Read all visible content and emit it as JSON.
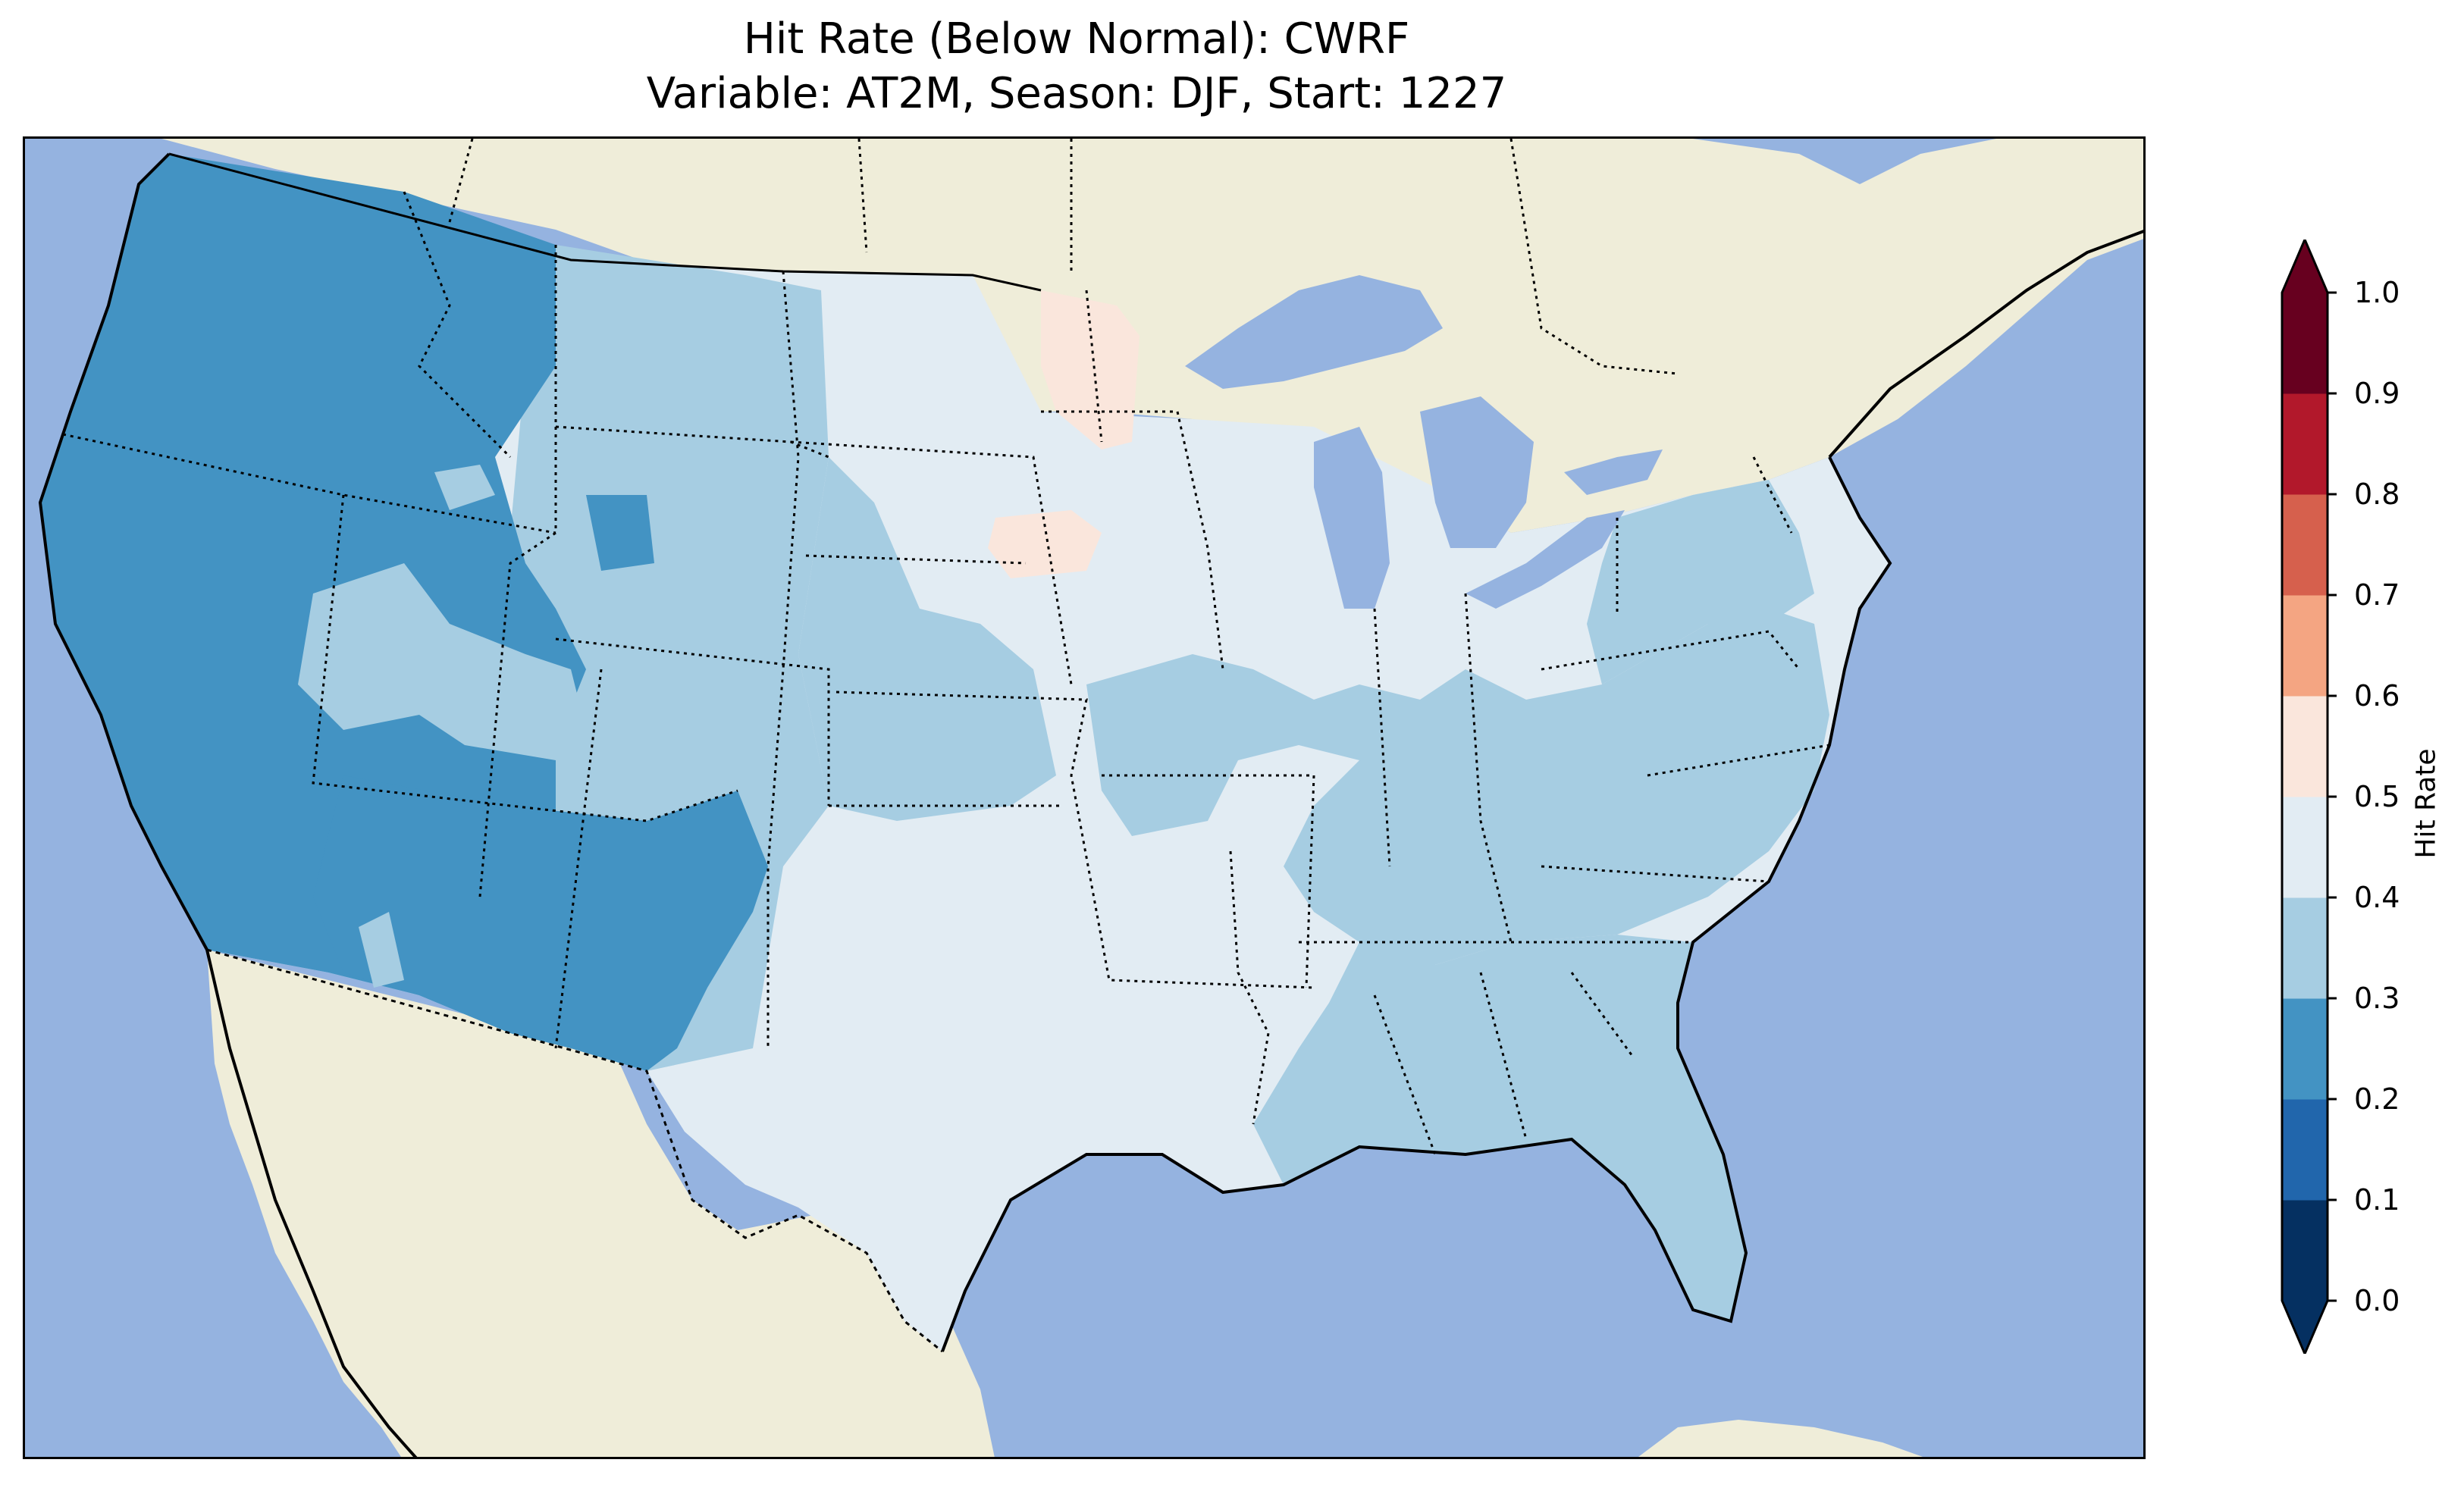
{
  "title": {
    "line1": "Hit Rate (Below Normal): CWRF",
    "line2": "Variable: AT2M, Season: DJF, Start: 1227"
  },
  "colors": {
    "ocean": "#95b3e0",
    "land": "#efedd9",
    "lakes": "#95b3e0"
  },
  "colorbar": {
    "label": "Hit Rate",
    "ticks": [
      "0.0",
      "0.1",
      "0.2",
      "0.3",
      "0.4",
      "0.5",
      "0.6",
      "0.7",
      "0.8",
      "0.9",
      "1.0"
    ],
    "bins": [
      {
        "range": [
          0.0,
          0.1
        ],
        "color": "#053061"
      },
      {
        "range": [
          0.1,
          0.2
        ],
        "color": "#2166ac"
      },
      {
        "range": [
          0.2,
          0.3
        ],
        "color": "#4393c3"
      },
      {
        "range": [
          0.3,
          0.4
        ],
        "color": "#a6cde2"
      },
      {
        "range": [
          0.4,
          0.5
        ],
        "color": "#e2ecf3"
      },
      {
        "range": [
          0.5,
          0.6
        ],
        "color": "#fae6dc"
      },
      {
        "range": [
          0.6,
          0.7
        ],
        "color": "#f4a582"
      },
      {
        "range": [
          0.7,
          0.8
        ],
        "color": "#d6604d"
      },
      {
        "range": [
          0.8,
          0.9
        ],
        "color": "#b2182b"
      },
      {
        "range": [
          0.9,
          1.0
        ],
        "color": "#67001f"
      }
    ],
    "extend": "both"
  },
  "regions": [
    {
      "name": "Pacific Northwest and California",
      "hit_rate_bin": "0.2-0.3"
    },
    {
      "name": "Great Basin / Nevada-Utah",
      "hit_rate_bin": "0.2-0.3"
    },
    {
      "name": "Arizona / New Mexico",
      "hit_rate_bin": "0.2-0.3"
    },
    {
      "name": "Montana / Wyoming / Colorado",
      "hit_rate_bin": "0.3-0.4"
    },
    {
      "name": "Northern / Central Plains",
      "hit_rate_bin": "0.4-0.5"
    },
    {
      "name": "Minnesota (northwest)",
      "hit_rate_bin": "0.5-0.6"
    },
    {
      "name": "South Dakota (east)",
      "hit_rate_bin": "0.5-0.6"
    },
    {
      "name": "Texas / Oklahoma / Lower Mississippi",
      "hit_rate_bin": "0.4-0.5"
    },
    {
      "name": "Southeast / Florida",
      "hit_rate_bin": "0.3-0.4"
    },
    {
      "name": "Ohio Valley / Mid-Atlantic",
      "hit_rate_bin": "0.3-0.4"
    },
    {
      "name": "Northeast / Maine",
      "hit_rate_bin": "0.4-0.5"
    }
  ]
}
